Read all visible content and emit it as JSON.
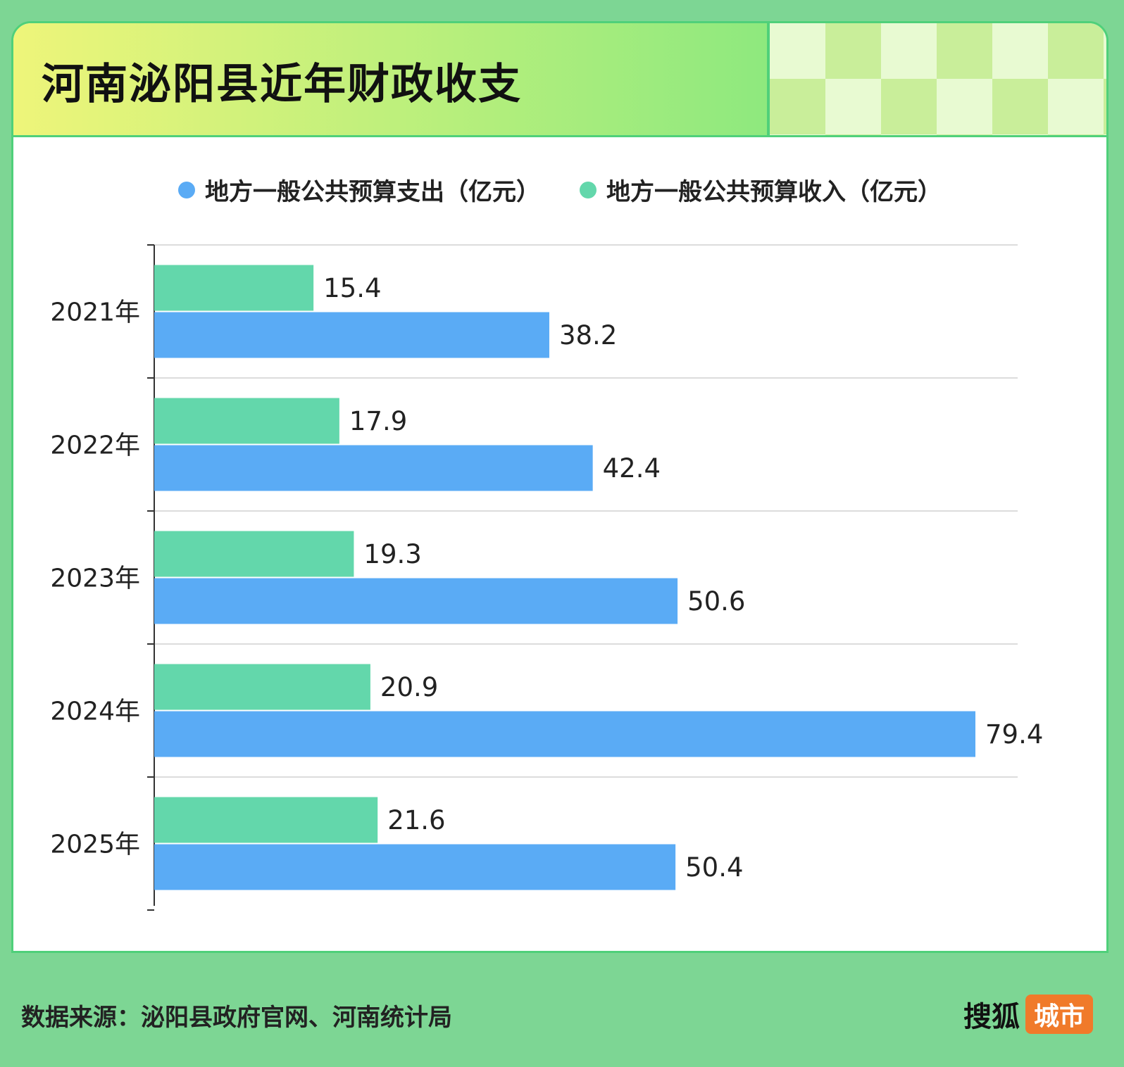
{
  "title": "河南泌阳县近年财政收支",
  "legend": [
    {
      "label": "地方一般公共预算支出（亿元）",
      "color": "#5aabf5"
    },
    {
      "label": "地方一般公共预算收入（亿元）",
      "color": "#63d7ab"
    }
  ],
  "source": "数据来源：泌阳县政府官网、河南统计局",
  "logo": {
    "text": "搜狐",
    "badge": "城市"
  },
  "chart_data": {
    "type": "bar",
    "orientation": "horizontal",
    "categories": [
      "2021年",
      "2022年",
      "2023年",
      "2024年",
      "2025年"
    ],
    "series": [
      {
        "name": "地方一般公共预算收入（亿元）",
        "color": "#63d7ab",
        "values": [
          15.4,
          17.9,
          19.3,
          20.9,
          21.6
        ]
      },
      {
        "name": "地方一般公共预算支出（亿元）",
        "color": "#5aabf5",
        "values": [
          38.2,
          42.4,
          50.6,
          79.4,
          50.4
        ]
      }
    ],
    "grid": true,
    "legend_position": "top"
  }
}
